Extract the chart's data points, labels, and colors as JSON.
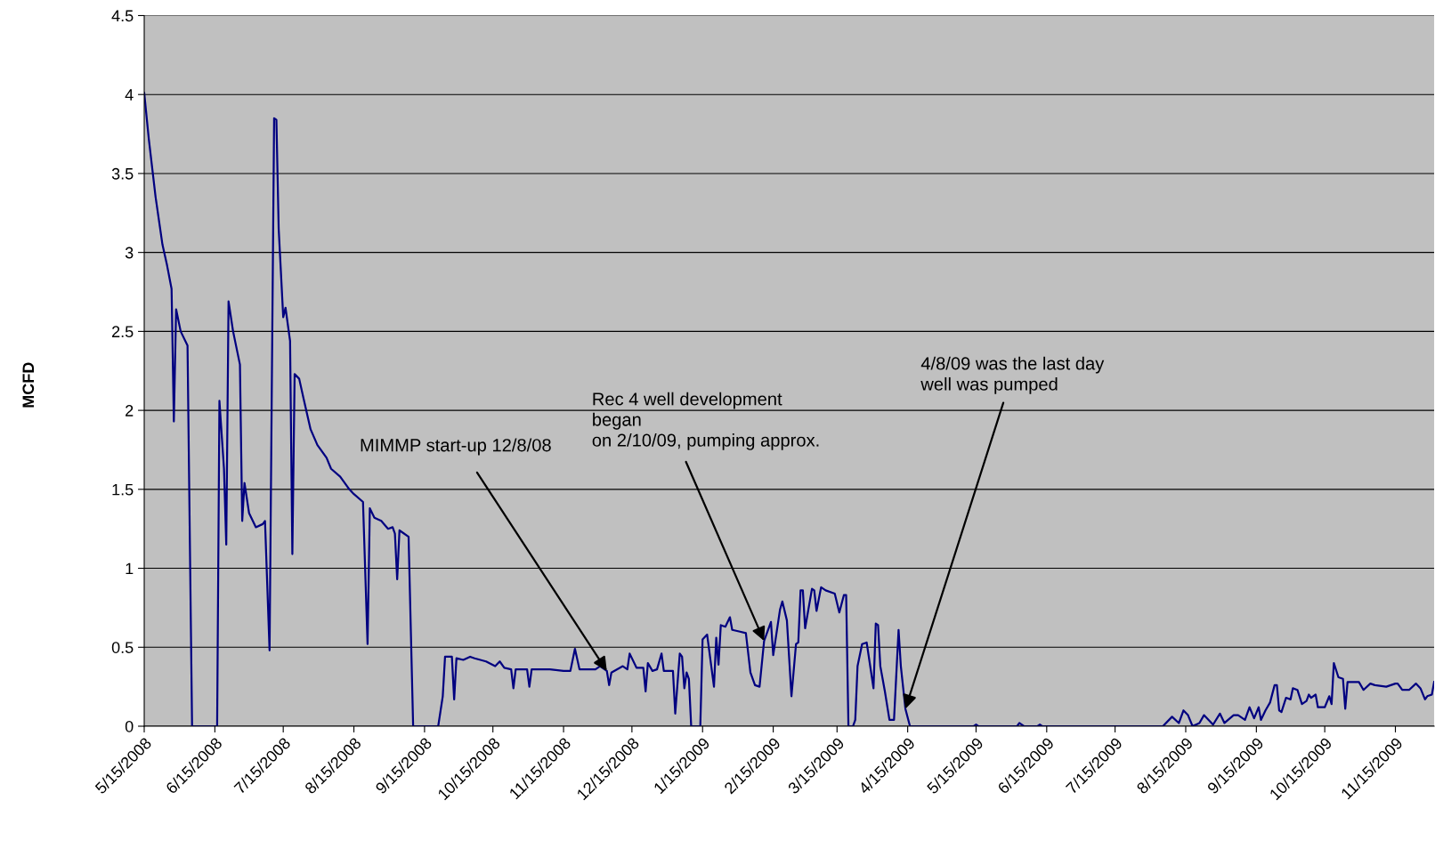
{
  "chart_data": {
    "type": "line",
    "ylabel": "MCFD",
    "grid": "y",
    "legend": false,
    "marker": "none",
    "line_style": "solid",
    "xlim": [
      "2008-05-15",
      "2009-12-02"
    ],
    "ylim": [
      0,
      4.5
    ],
    "yticks": [
      0,
      0.5,
      1,
      1.5,
      2,
      2.5,
      3,
      3.5,
      4,
      4.5
    ],
    "xticks": [
      {
        "value": "2008-05-15",
        "label": "5/15/2008"
      },
      {
        "value": "2008-06-15",
        "label": "6/15/2008"
      },
      {
        "value": "2008-07-15",
        "label": "7/15/2008"
      },
      {
        "value": "2008-08-15",
        "label": "8/15/2008"
      },
      {
        "value": "2008-09-15",
        "label": "9/15/2008"
      },
      {
        "value": "2008-10-15",
        "label": "10/15/2008"
      },
      {
        "value": "2008-11-15",
        "label": "11/15/2008"
      },
      {
        "value": "2008-12-15",
        "label": "12/15/2008"
      },
      {
        "value": "2009-01-15",
        "label": "1/15/2009"
      },
      {
        "value": "2009-02-15",
        "label": "2/15/2009"
      },
      {
        "value": "2009-03-15",
        "label": "3/15/2009"
      },
      {
        "value": "2009-04-15",
        "label": "4/15/2009"
      },
      {
        "value": "2009-05-15",
        "label": "5/15/2009"
      },
      {
        "value": "2009-06-15",
        "label": "6/15/2009"
      },
      {
        "value": "2009-07-15",
        "label": "7/15/2009"
      },
      {
        "value": "2009-08-15",
        "label": "8/15/2009"
      },
      {
        "value": "2009-09-15",
        "label": "9/15/2009"
      },
      {
        "value": "2009-10-15",
        "label": "10/15/2009"
      },
      {
        "value": "2009-11-15",
        "label": "11/15/2009"
      }
    ],
    "annotations": [
      {
        "text": "MIMMP start-up 12/8/08",
        "x": "2008-12-04",
        "y": 0.35
      },
      {
        "text": "Rec 4 well development\nbegan\non 2/10/09, pumping approx.",
        "x": "2009-02-11",
        "y": 0.54
      },
      {
        "text": "4/8/09 was the last day\nwell was pumped",
        "x": "2009-04-14",
        "y": 0.11
      }
    ],
    "series": [
      {
        "color": "#000080",
        "x": [
          "2008-05-15",
          "2008-05-17",
          "2008-05-20",
          "2008-05-23",
          "2008-05-25",
          "2008-05-27",
          "2008-05-28",
          "2008-05-29",
          "2008-05-31",
          "2008-06-03",
          "2008-06-05",
          "2008-06-16",
          "2008-06-17",
          "2008-06-19",
          "2008-06-20",
          "2008-06-21",
          "2008-06-23",
          "2008-06-26",
          "2008-06-27",
          "2008-06-28",
          "2008-06-30",
          "2008-07-03",
          "2008-07-06",
          "2008-07-07",
          "2008-07-09",
          "2008-07-11",
          "2008-07-12",
          "2008-07-13",
          "2008-07-15",
          "2008-07-16",
          "2008-07-18",
          "2008-07-19",
          "2008-07-20",
          "2008-07-22",
          "2008-07-24",
          "2008-07-27",
          "2008-07-30",
          "2008-08-03",
          "2008-08-05",
          "2008-08-09",
          "2008-08-13",
          "2008-08-15",
          "2008-08-19",
          "2008-08-21",
          "2008-08-22",
          "2008-08-24",
          "2008-08-27",
          "2008-08-30",
          "2008-09-01",
          "2008-09-02",
          "2008-09-03",
          "2008-09-04",
          "2008-09-05",
          "2008-09-08",
          "2008-09-10",
          "2008-09-21",
          "2008-09-23",
          "2008-09-24",
          "2008-09-27",
          "2008-09-28",
          "2008-09-29",
          "2008-10-02",
          "2008-10-05",
          "2008-10-07",
          "2008-10-12",
          "2008-10-16",
          "2008-10-18",
          "2008-10-20",
          "2008-10-23",
          "2008-10-24",
          "2008-10-25",
          "2008-10-30",
          "2008-10-31",
          "2008-11-01",
          "2008-11-09",
          "2008-11-15",
          "2008-11-18",
          "2008-11-20",
          "2008-11-22",
          "2008-11-29",
          "2008-12-01",
          "2008-12-04",
          "2008-12-05",
          "2008-12-06",
          "2008-12-11",
          "2008-12-13",
          "2008-12-14",
          "2008-12-17",
          "2008-12-20",
          "2008-12-21",
          "2008-12-22",
          "2008-12-24",
          "2008-12-26",
          "2008-12-28",
          "2008-12-29",
          "2009-01-02",
          "2009-01-03",
          "2009-01-05",
          "2009-01-06",
          "2009-01-07",
          "2009-01-08",
          "2009-01-09",
          "2009-01-10",
          "2009-01-13",
          "2009-01-14",
          "2009-01-15",
          "2009-01-17",
          "2009-01-20",
          "2009-01-21",
          "2009-01-22",
          "2009-01-23",
          "2009-01-25",
          "2009-01-27",
          "2009-01-28",
          "2009-01-31",
          "2009-02-03",
          "2009-02-05",
          "2009-02-07",
          "2009-02-09",
          "2009-02-11",
          "2009-02-14",
          "2009-02-15",
          "2009-02-18",
          "2009-02-19",
          "2009-02-21",
          "2009-02-23",
          "2009-02-25",
          "2009-02-26",
          "2009-02-27",
          "2009-02-28",
          "2009-03-01",
          "2009-03-04",
          "2009-03-05",
          "2009-03-06",
          "2009-03-08",
          "2009-03-10",
          "2009-03-14",
          "2009-03-16",
          "2009-03-18",
          "2009-03-19",
          "2009-03-20",
          "2009-03-22",
          "2009-03-23",
          "2009-03-24",
          "2009-03-26",
          "2009-03-28",
          "2009-03-31",
          "2009-04-01",
          "2009-04-02",
          "2009-04-03",
          "2009-04-04",
          "2009-04-05",
          "2009-04-07",
          "2009-04-09",
          "2009-04-11",
          "2009-04-12",
          "2009-04-14",
          "2009-04-16",
          "2009-05-14",
          "2009-05-15",
          "2009-05-16",
          "2009-06-02",
          "2009-06-03",
          "2009-06-05",
          "2009-06-11",
          "2009-06-12",
          "2009-06-13",
          "2009-08-05",
          "2009-08-09",
          "2009-08-12",
          "2009-08-14",
          "2009-08-16",
          "2009-08-18",
          "2009-08-21",
          "2009-08-23",
          "2009-08-27",
          "2009-08-30",
          "2009-09-01",
          "2009-09-05",
          "2009-09-07",
          "2009-09-10",
          "2009-09-12",
          "2009-09-14",
          "2009-09-16",
          "2009-09-17",
          "2009-09-19",
          "2009-09-21",
          "2009-09-23",
          "2009-09-24",
          "2009-09-25",
          "2009-09-26",
          "2009-09-28",
          "2009-09-30",
          "2009-10-01",
          "2009-10-03",
          "2009-10-05",
          "2009-10-07",
          "2009-10-08",
          "2009-10-09",
          "2009-10-11",
          "2009-10-12",
          "2009-10-15",
          "2009-10-17",
          "2009-10-18",
          "2009-10-19",
          "2009-10-21",
          "2009-10-23",
          "2009-10-24",
          "2009-10-25",
          "2009-10-30",
          "2009-11-01",
          "2009-11-04",
          "2009-11-06",
          "2009-11-11",
          "2009-11-15",
          "2009-11-16",
          "2009-11-18",
          "2009-11-21",
          "2009-11-24",
          "2009-11-26",
          "2009-11-28",
          "2009-11-29",
          "2009-12-01",
          "2009-12-02"
        ],
        "values": [
          4.01,
          3.72,
          3.35,
          3.05,
          2.92,
          2.77,
          1.93,
          2.64,
          2.5,
          2.41,
          0,
          0,
          2.06,
          1.63,
          1.15,
          2.69,
          2.5,
          2.29,
          1.3,
          1.54,
          1.35,
          1.26,
          1.28,
          1.3,
          0.48,
          3.85,
          3.84,
          3.15,
          2.59,
          2.65,
          2.44,
          1.09,
          2.23,
          2.2,
          2.07,
          1.88,
          1.78,
          1.7,
          1.63,
          1.58,
          1.5,
          1.47,
          1.42,
          0.52,
          1.38,
          1.32,
          1.3,
          1.25,
          1.26,
          1.22,
          0.93,
          1.24,
          1.23,
          1.2,
          0,
          0,
          0.19,
          0.44,
          0.44,
          0.17,
          0.43,
          0.42,
          0.44,
          0.43,
          0.41,
          0.38,
          0.41,
          0.37,
          0.36,
          0.24,
          0.36,
          0.36,
          0.25,
          0.36,
          0.36,
          0.35,
          0.35,
          0.49,
          0.36,
          0.36,
          0.38,
          0.35,
          0.26,
          0.34,
          0.38,
          0.36,
          0.46,
          0.37,
          0.37,
          0.22,
          0.4,
          0.35,
          0.36,
          0.46,
          0.35,
          0.35,
          0.08,
          0.46,
          0.44,
          0.24,
          0.34,
          0.3,
          0,
          0,
          0,
          0.55,
          0.58,
          0.25,
          0.56,
          0.39,
          0.64,
          0.63,
          0.69,
          0.61,
          0.6,
          0.59,
          0.34,
          0.26,
          0.25,
          0.54,
          0.66,
          0.45,
          0.74,
          0.79,
          0.67,
          0.19,
          0.52,
          0.53,
          0.86,
          0.86,
          0.62,
          0.87,
          0.86,
          0.73,
          0.88,
          0.86,
          0.84,
          0.72,
          0.83,
          0.83,
          0,
          0,
          0.04,
          0.38,
          0.52,
          0.53,
          0.24,
          0.65,
          0.64,
          0.38,
          0.3,
          0.22,
          0.04,
          0.04,
          0.61,
          0.38,
          0.11,
          0,
          0,
          0.01,
          0,
          0,
          0.02,
          0,
          0,
          0.01,
          0,
          0,
          0.06,
          0.02,
          0.1,
          0.07,
          0,
          0.02,
          0.07,
          0.01,
          0.08,
          0.02,
          0.07,
          0.07,
          0.04,
          0.12,
          0.05,
          0.12,
          0.04,
          0.1,
          0.15,
          0.26,
          0.26,
          0.1,
          0.09,
          0.18,
          0.17,
          0.24,
          0.23,
          0.14,
          0.16,
          0.2,
          0.18,
          0.2,
          0.12,
          0.12,
          0.19,
          0.14,
          0.4,
          0.31,
          0.3,
          0.11,
          0.28,
          0.28,
          0.23,
          0.27,
          0.26,
          0.25,
          0.27,
          0.27,
          0.23,
          0.23,
          0.27,
          0.24,
          0.17,
          0.19,
          0.2,
          0.28
        ]
      }
    ]
  }
}
